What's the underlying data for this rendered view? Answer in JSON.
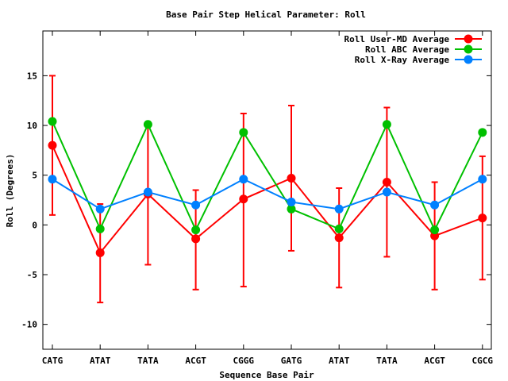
{
  "chart_data": {
    "type": "line",
    "title": "Base Pair Step Helical Parameter: Roll",
    "xlabel": "Sequence Base Pair",
    "ylabel": "Roll (Degrees)",
    "categories": [
      "CATG",
      "ATAT",
      "TATA",
      "ACGT",
      "CGGG",
      "GATG",
      "ATAT",
      "TATA",
      "ACGT",
      "CGCG"
    ],
    "ylim": [
      -12.5,
      19.5
    ],
    "yticks": [
      -10,
      -5,
      0,
      5,
      10,
      15
    ],
    "ytick_labels": [
      "-10",
      "-5",
      "0",
      "5",
      "10",
      "15"
    ],
    "grid": false,
    "legend_position": "top-right",
    "series": [
      {
        "name": "Roll User-MD Average",
        "color": "#ff0000",
        "values": [
          8.0,
          -2.8,
          3.1,
          -1.4,
          2.6,
          4.7,
          -1.3,
          4.3,
          -1.1,
          0.7
        ],
        "error_low": [
          1.0,
          -7.8,
          -4.0,
          -6.5,
          -6.2,
          -2.6,
          -6.3,
          -3.2,
          -6.5,
          -5.5
        ],
        "error_high": [
          15.0,
          2.1,
          10.1,
          3.5,
          11.2,
          12.0,
          3.7,
          11.8,
          4.3,
          6.9
        ]
      },
      {
        "name": "Roll ABC Average",
        "color": "#00c000",
        "values": [
          10.4,
          -0.4,
          10.1,
          -0.5,
          9.3,
          1.6,
          -0.4,
          10.1,
          -0.5,
          9.3
        ]
      },
      {
        "name": "Roll X-Ray Average",
        "color": "#0080ff",
        "values": [
          4.6,
          1.6,
          3.3,
          2.0,
          4.6,
          2.3,
          1.6,
          3.3,
          2.0,
          4.6
        ]
      }
    ]
  }
}
